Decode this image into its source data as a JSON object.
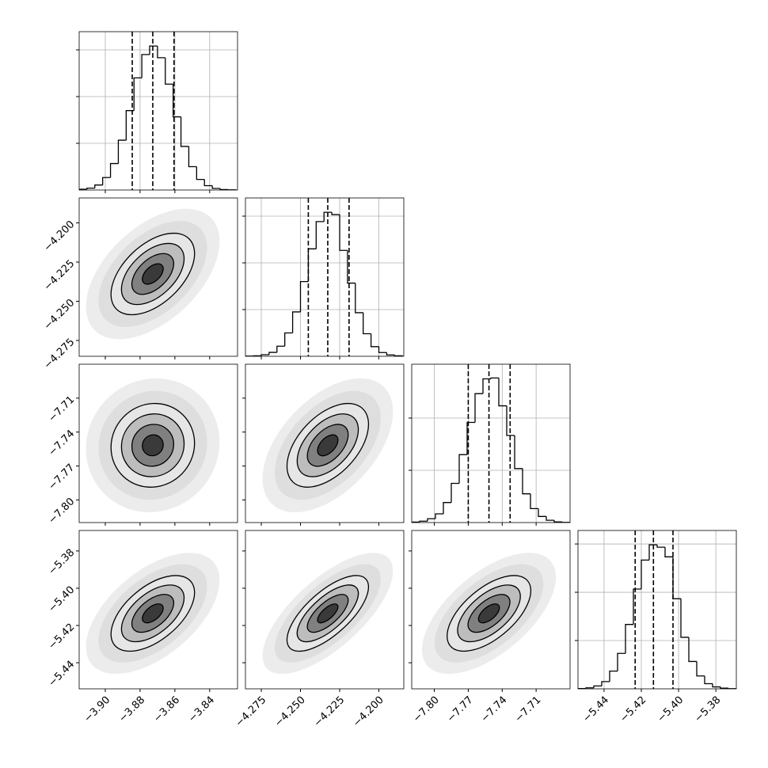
{
  "chart_data": {
    "type": "corner",
    "color": "#000000",
    "grid": true,
    "contour_sigmas": [
      0.5,
      1,
      1.5,
      2
    ],
    "params": [
      {
        "lim": [
          -3.915,
          -3.824
        ],
        "ticks": [
          {
            "value": -3.9,
            "label": "−3.90"
          },
          {
            "value": -3.88,
            "label": "−3.88"
          },
          {
            "value": -3.86,
            "label": "−3.86"
          },
          {
            "value": -3.84,
            "label": "−3.84"
          }
        ],
        "quantiles": [
          -3.8845,
          -3.8727,
          -3.8605
        ],
        "bins": [
          -3.915,
          -3.9105,
          -3.906,
          -3.9015,
          -3.897,
          -3.8925,
          -3.888,
          -3.8835,
          -3.879,
          -3.8745,
          -3.87,
          -3.8655,
          -3.861,
          -3.8565,
          -3.852,
          -3.8475,
          -3.843,
          -3.8385,
          -3.834,
          -3.8295,
          -3.825
        ],
        "counts": [
          5,
          12,
          32,
          80,
          170,
          320,
          510,
          720,
          870,
          925,
          850,
          680,
          470,
          280,
          150,
          68,
          28,
          10,
          3,
          1
        ],
        "hist_ylim": [
          0,
          1017
        ],
        "hist_yticks": [
          300,
          600,
          900
        ]
      },
      {
        "lim": [
          -4.2851,
          -4.1841
        ],
        "ticks": [
          {
            "value": -4.275,
            "label": "−4.275"
          },
          {
            "value": -4.25,
            "label": "−4.250"
          },
          {
            "value": -4.225,
            "label": "−4.225"
          },
          {
            "value": -4.2,
            "label": "−4.200"
          }
        ],
        "quantiles": [
          -4.245,
          -4.2326,
          -4.219
        ],
        "bins": [
          -4.285,
          -4.28,
          -4.275,
          -4.27,
          -4.265,
          -4.26,
          -4.255,
          -4.25,
          -4.245,
          -4.24,
          -4.235,
          -4.23,
          -4.225,
          -4.22,
          -4.215,
          -4.21,
          -4.205,
          -4.2,
          -4.195,
          -4.19,
          -4.185
        ],
        "counts": [
          1,
          3,
          10,
          25,
          65,
          150,
          285,
          480,
          690,
          865,
          925,
          910,
          680,
          470,
          280,
          145,
          62,
          24,
          9,
          3
        ],
        "hist_ylim": [
          0,
          1017
        ],
        "hist_yticks": [
          300,
          600,
          900
        ]
      },
      {
        "lim": [
          -7.82,
          -7.68
        ],
        "ticks": [
          {
            "value": -7.8,
            "label": "−7.80"
          },
          {
            "value": -7.77,
            "label": "−7.77"
          },
          {
            "value": -7.74,
            "label": "−7.74"
          },
          {
            "value": -7.71,
            "label": "−7.71"
          }
        ],
        "quantiles": [
          -7.77,
          -7.7517,
          -7.733
        ],
        "bins": [
          -7.82,
          -7.813,
          -7.806,
          -7.799,
          -7.792,
          -7.785,
          -7.778,
          -7.771,
          -7.764,
          -7.757,
          -7.75,
          -7.743,
          -7.736,
          -7.729,
          -7.722,
          -7.715,
          -7.708,
          -7.701,
          -7.694,
          -7.687,
          -7.68
        ],
        "counts": [
          3,
          8,
          22,
          50,
          115,
          225,
          390,
          575,
          740,
          825,
          830,
          670,
          500,
          310,
          165,
          80,
          35,
          13,
          4,
          1
        ],
        "hist_ylim": [
          0,
          909
        ],
        "hist_yticks": [
          300,
          600
        ]
      },
      {
        "lim": [
          -5.454,
          -5.369
        ],
        "ticks": [
          {
            "value": -5.44,
            "label": "−5.44"
          },
          {
            "value": -5.42,
            "label": "−5.42"
          },
          {
            "value": -5.4,
            "label": "−5.40"
          },
          {
            "value": -5.38,
            "label": "−5.38"
          }
        ],
        "quantiles": [
          -5.4233,
          -5.4135,
          -5.403
        ],
        "bins": [
          -5.454,
          -5.44975,
          -5.4455,
          -5.44125,
          -5.437,
          -5.43275,
          -5.4285,
          -5.42425,
          -5.42,
          -5.41575,
          -5.4115,
          -5.40725,
          -5.403,
          -5.39875,
          -5.3945,
          -5.39025,
          -5.386,
          -5.38175,
          -5.3775,
          -5.37325,
          -5.369
        ],
        "counts": [
          2,
          6,
          18,
          45,
          110,
          220,
          400,
          620,
          800,
          895,
          880,
          820,
          560,
          320,
          170,
          80,
          32,
          12,
          4,
          1
        ],
        "hist_ylim": [
          0,
          984
        ],
        "hist_yticks": [
          300,
          600,
          900
        ]
      }
    ],
    "pairs": [
      {
        "x": 0,
        "y": 1,
        "rho": 0.5
      },
      {
        "x": 0,
        "y": 2,
        "rho": 0.05
      },
      {
        "x": 1,
        "y": 2,
        "rho": 0.5
      },
      {
        "x": 0,
        "y": 3,
        "rho": 0.55
      },
      {
        "x": 1,
        "y": 3,
        "rho": 0.7
      },
      {
        "x": 2,
        "y": 3,
        "rho": 0.6
      }
    ]
  }
}
